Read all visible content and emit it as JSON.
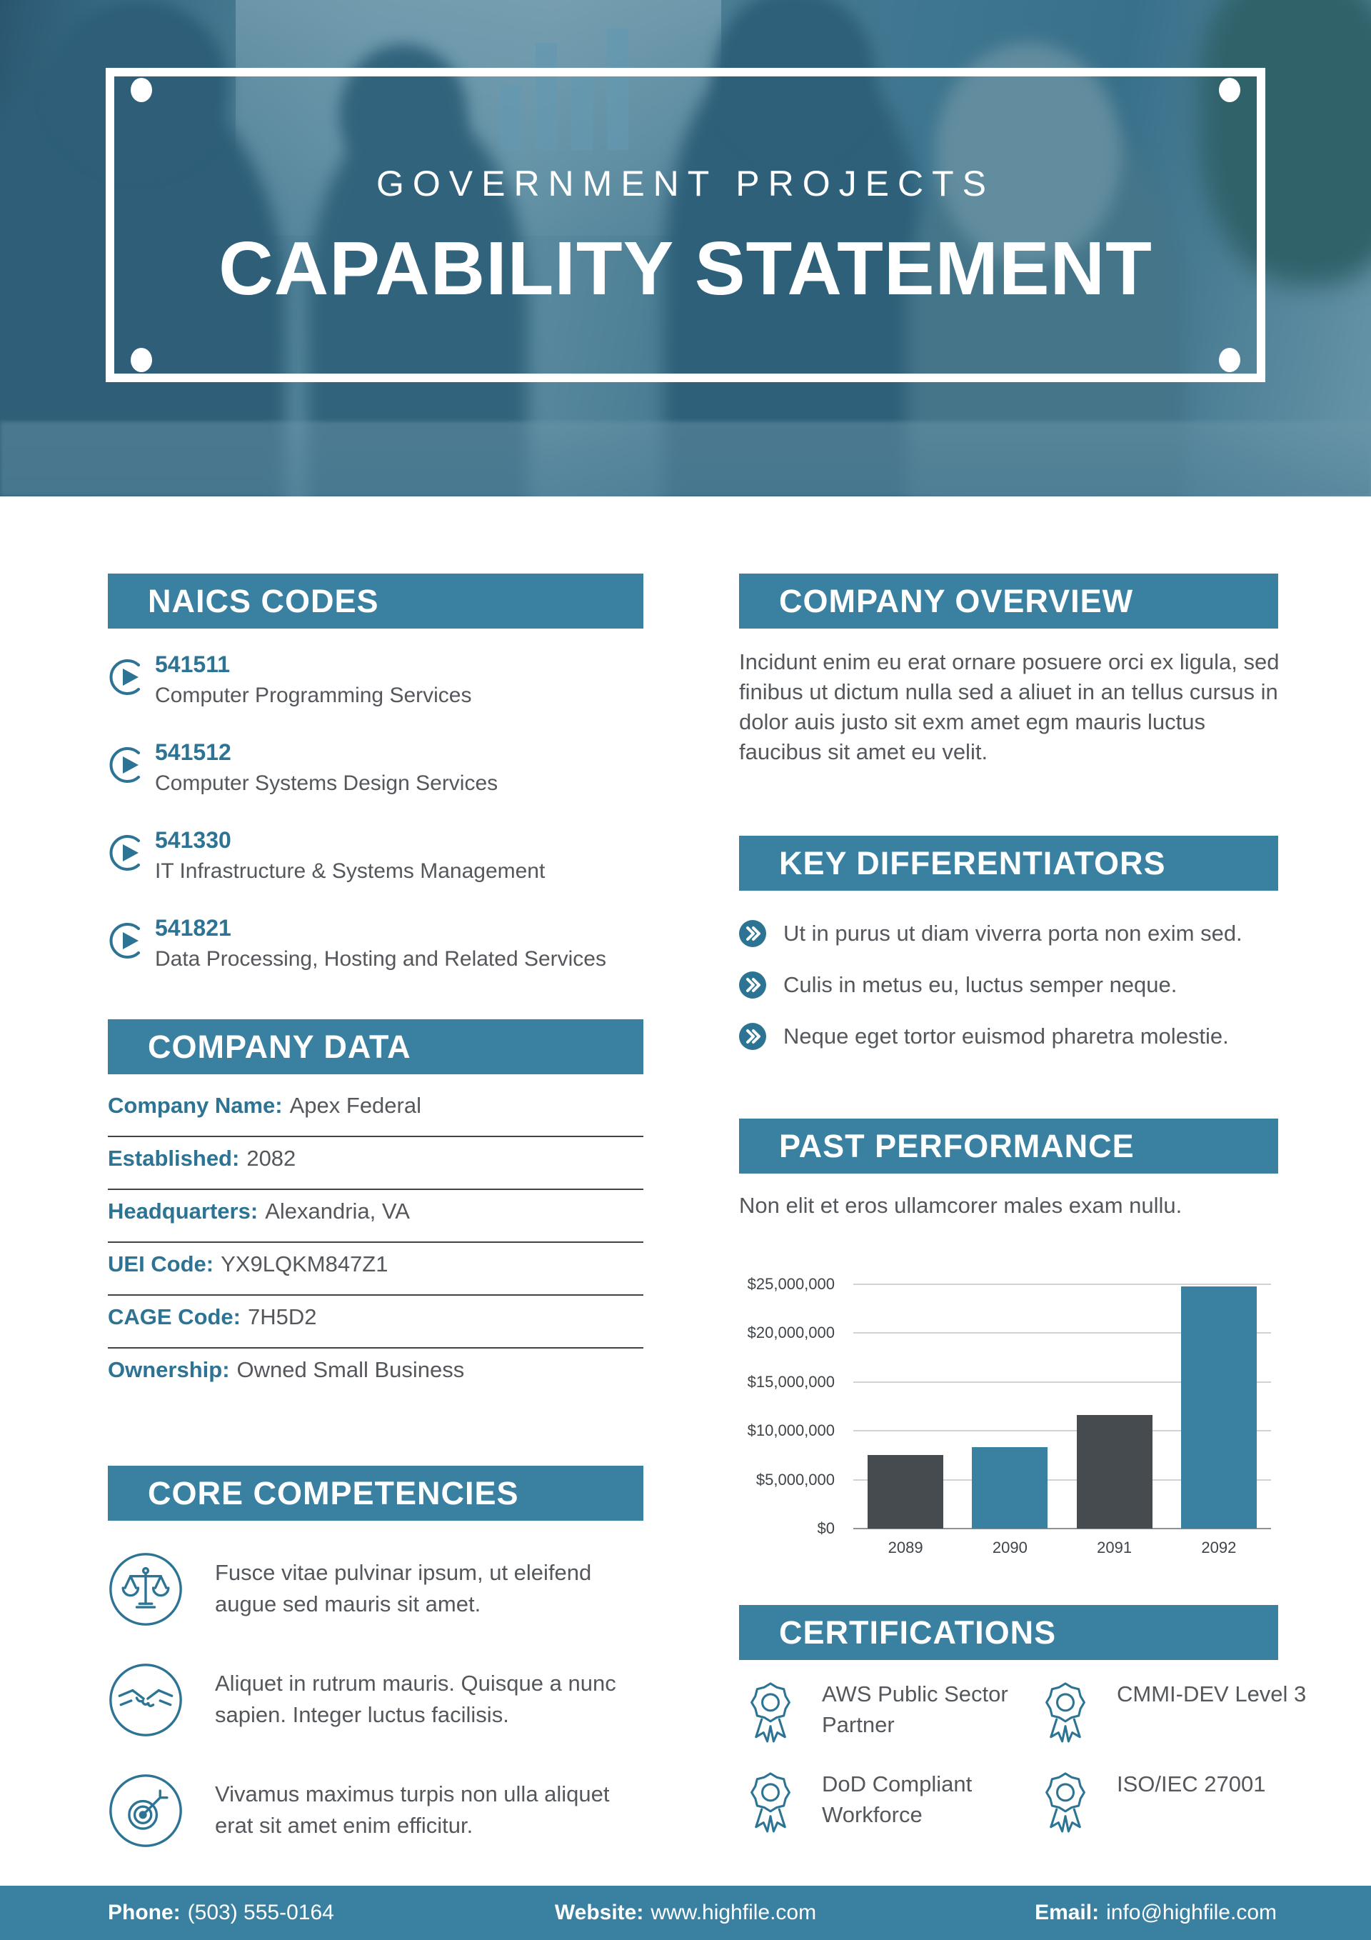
{
  "hero": {
    "kicker": "GOVERNMENT PROJECTS",
    "title": "CAPABILITY STATEMENT"
  },
  "naics": {
    "title": "NAICS CODES",
    "items": [
      {
        "icon": "circle-play-icon",
        "code": "541511",
        "name": "Computer Programming Services"
      },
      {
        "icon": "circle-play-icon",
        "code": "541512",
        "name": "Computer Systems Design Services"
      },
      {
        "icon": "circle-play-icon",
        "code": "541330",
        "name": "IT Infrastructure & Systems Management"
      },
      {
        "icon": "circle-play-icon",
        "code": "541821",
        "name": "Data Processing, Hosting and Related Services"
      }
    ]
  },
  "company_overview": {
    "title": "COMPANY OVERVIEW",
    "body": "Incidunt enim eu erat ornare posuere orci ex ligula, sed finibus ut dictum nulla sed a aliuet in an tellus cursus in dolor auis justo sit exm amet egm mauris luctus faucibus sit amet eu velit."
  },
  "key_differentiators": {
    "title": "KEY DIFFERENTIATORS",
    "bullet_icon": "double-chevron-icon",
    "items": [
      "Ut in purus ut diam viverra porta non exim sed.",
      "Culis in metus eu, luctus semper neque.",
      "Neque eget tortor euismod pharetra molestie."
    ]
  },
  "company_data": {
    "title": "COMPANY DATA",
    "rows": [
      {
        "label": "Company Name:",
        "value": "Apex Federal"
      },
      {
        "label": "Established:",
        "value": "2082"
      },
      {
        "label": "Headquarters:",
        "value": "Alexandria, VA"
      },
      {
        "label": "UEI Code:",
        "value": "YX9LQKM847Z1"
      },
      {
        "label": "CAGE Code:",
        "value": "7H5D2"
      },
      {
        "label": "Ownership:",
        "value": "Owned Small Business"
      }
    ]
  },
  "past_performance": {
    "title": "PAST PERFORMANCE",
    "subtitle": "Non elit et eros ullamcorer males exam nullu."
  },
  "chart_data": {
    "type": "bar",
    "categories": [
      "2089",
      "2090",
      "2091",
      "2092"
    ],
    "values": [
      7500000,
      8300000,
      11600000,
      24800000
    ],
    "bar_colors": [
      "#464b4f",
      "#3a80a1",
      "#464b4f",
      "#3a80a1"
    ],
    "title": "PAST PERFORMANCE",
    "xlabel": "",
    "ylabel": "",
    "ylim": [
      0,
      25000000
    ],
    "yticks": [
      0,
      5000000,
      10000000,
      15000000,
      20000000,
      25000000
    ],
    "ytick_labels": [
      "$0",
      "$5,000,000",
      "$10,000,000",
      "$15,000,000",
      "$20,000,000",
      "$25,000,000"
    ],
    "grid": true,
    "legend": false
  },
  "core_competencies": {
    "title": "CORE COMPETENCIES",
    "items": [
      {
        "icon": "scales-icon",
        "text": "Fusce vitae pulvinar ipsum, ut eleifend augue sed mauris sit amet."
      },
      {
        "icon": "handshake-icon",
        "text": "Aliquet in rutrum mauris. Quisque a nunc sapien. Integer luctus facilisis."
      },
      {
        "icon": "target-icon",
        "text": "Vivamus maximus turpis non ulla aliquet erat sit amet enim efficitur."
      }
    ]
  },
  "certifications": {
    "title": "CERTIFICATIONS",
    "badge_icon": "ribbon-badge-icon",
    "items": [
      "AWS Public Sector Partner",
      "CMMI-DEV Level 3",
      "DoD Compliant Workforce",
      "ISO/IEC 27001"
    ]
  },
  "footer": {
    "phone_label": "Phone:",
    "phone": "(503) 555-0164",
    "website_label": "Website:",
    "website": "www.highfile.com",
    "email_label": "Email:",
    "email": "info@highfile.com"
  },
  "colors": {
    "primary_teal": "#3a80a1",
    "accent_teal": "#2d7394",
    "bar_dark": "#464b4f",
    "body_text": "#54585c",
    "hero_overlay": "#316a83"
  }
}
